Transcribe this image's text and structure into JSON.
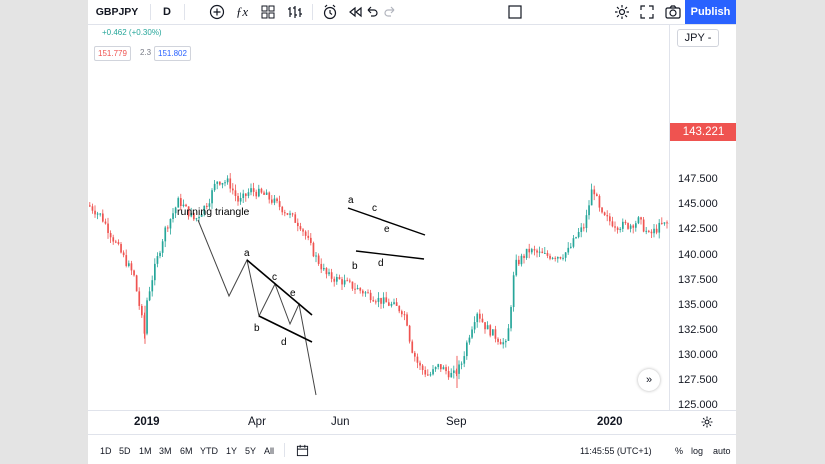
{
  "toolbar": {
    "symbol": "GBPJPY",
    "interval": "D",
    "publish_label": "Publish",
    "icons": [
      "add-icon",
      "indicators-icon",
      "templates-icon",
      "bar-style-icon",
      "alert-icon",
      "replay-icon",
      "undo-icon",
      "redo-icon",
      "layout-icon",
      "settings-icon",
      "fullscreen-icon",
      "camera-icon"
    ]
  },
  "legend": {
    "change": "+0.462 (+0.30%)",
    "bid": "151.779",
    "spread": "2.3",
    "ask": "151.802"
  },
  "price_scale": {
    "currency": "JPY",
    "current_price": "143.221",
    "ticks": [
      "147.500",
      "145.000",
      "142.500",
      "140.000",
      "137.500",
      "135.000",
      "132.500",
      "130.000",
      "127.500",
      "125.000"
    ]
  },
  "time_axis": {
    "labels": [
      "2019",
      "Apr",
      "Jun",
      "Sep",
      "2020"
    ]
  },
  "bottom_bar": {
    "ranges": [
      "1D",
      "5D",
      "1M",
      "3M",
      "6M",
      "YTD",
      "1Y",
      "5Y",
      "All"
    ],
    "clock": "11:45:55 (UTC+1)",
    "percent": "%",
    "log": "log",
    "auto": "auto"
  },
  "annotations": {
    "running_triangle": "running triangle",
    "model_points": [
      "a",
      "b",
      "c",
      "d",
      "e"
    ],
    "chart_points": [
      "a",
      "b",
      "c",
      "d",
      "e"
    ]
  },
  "colors": {
    "up": "#26a69a",
    "down": "#ef5350",
    "accent": "#2962ff"
  }
}
